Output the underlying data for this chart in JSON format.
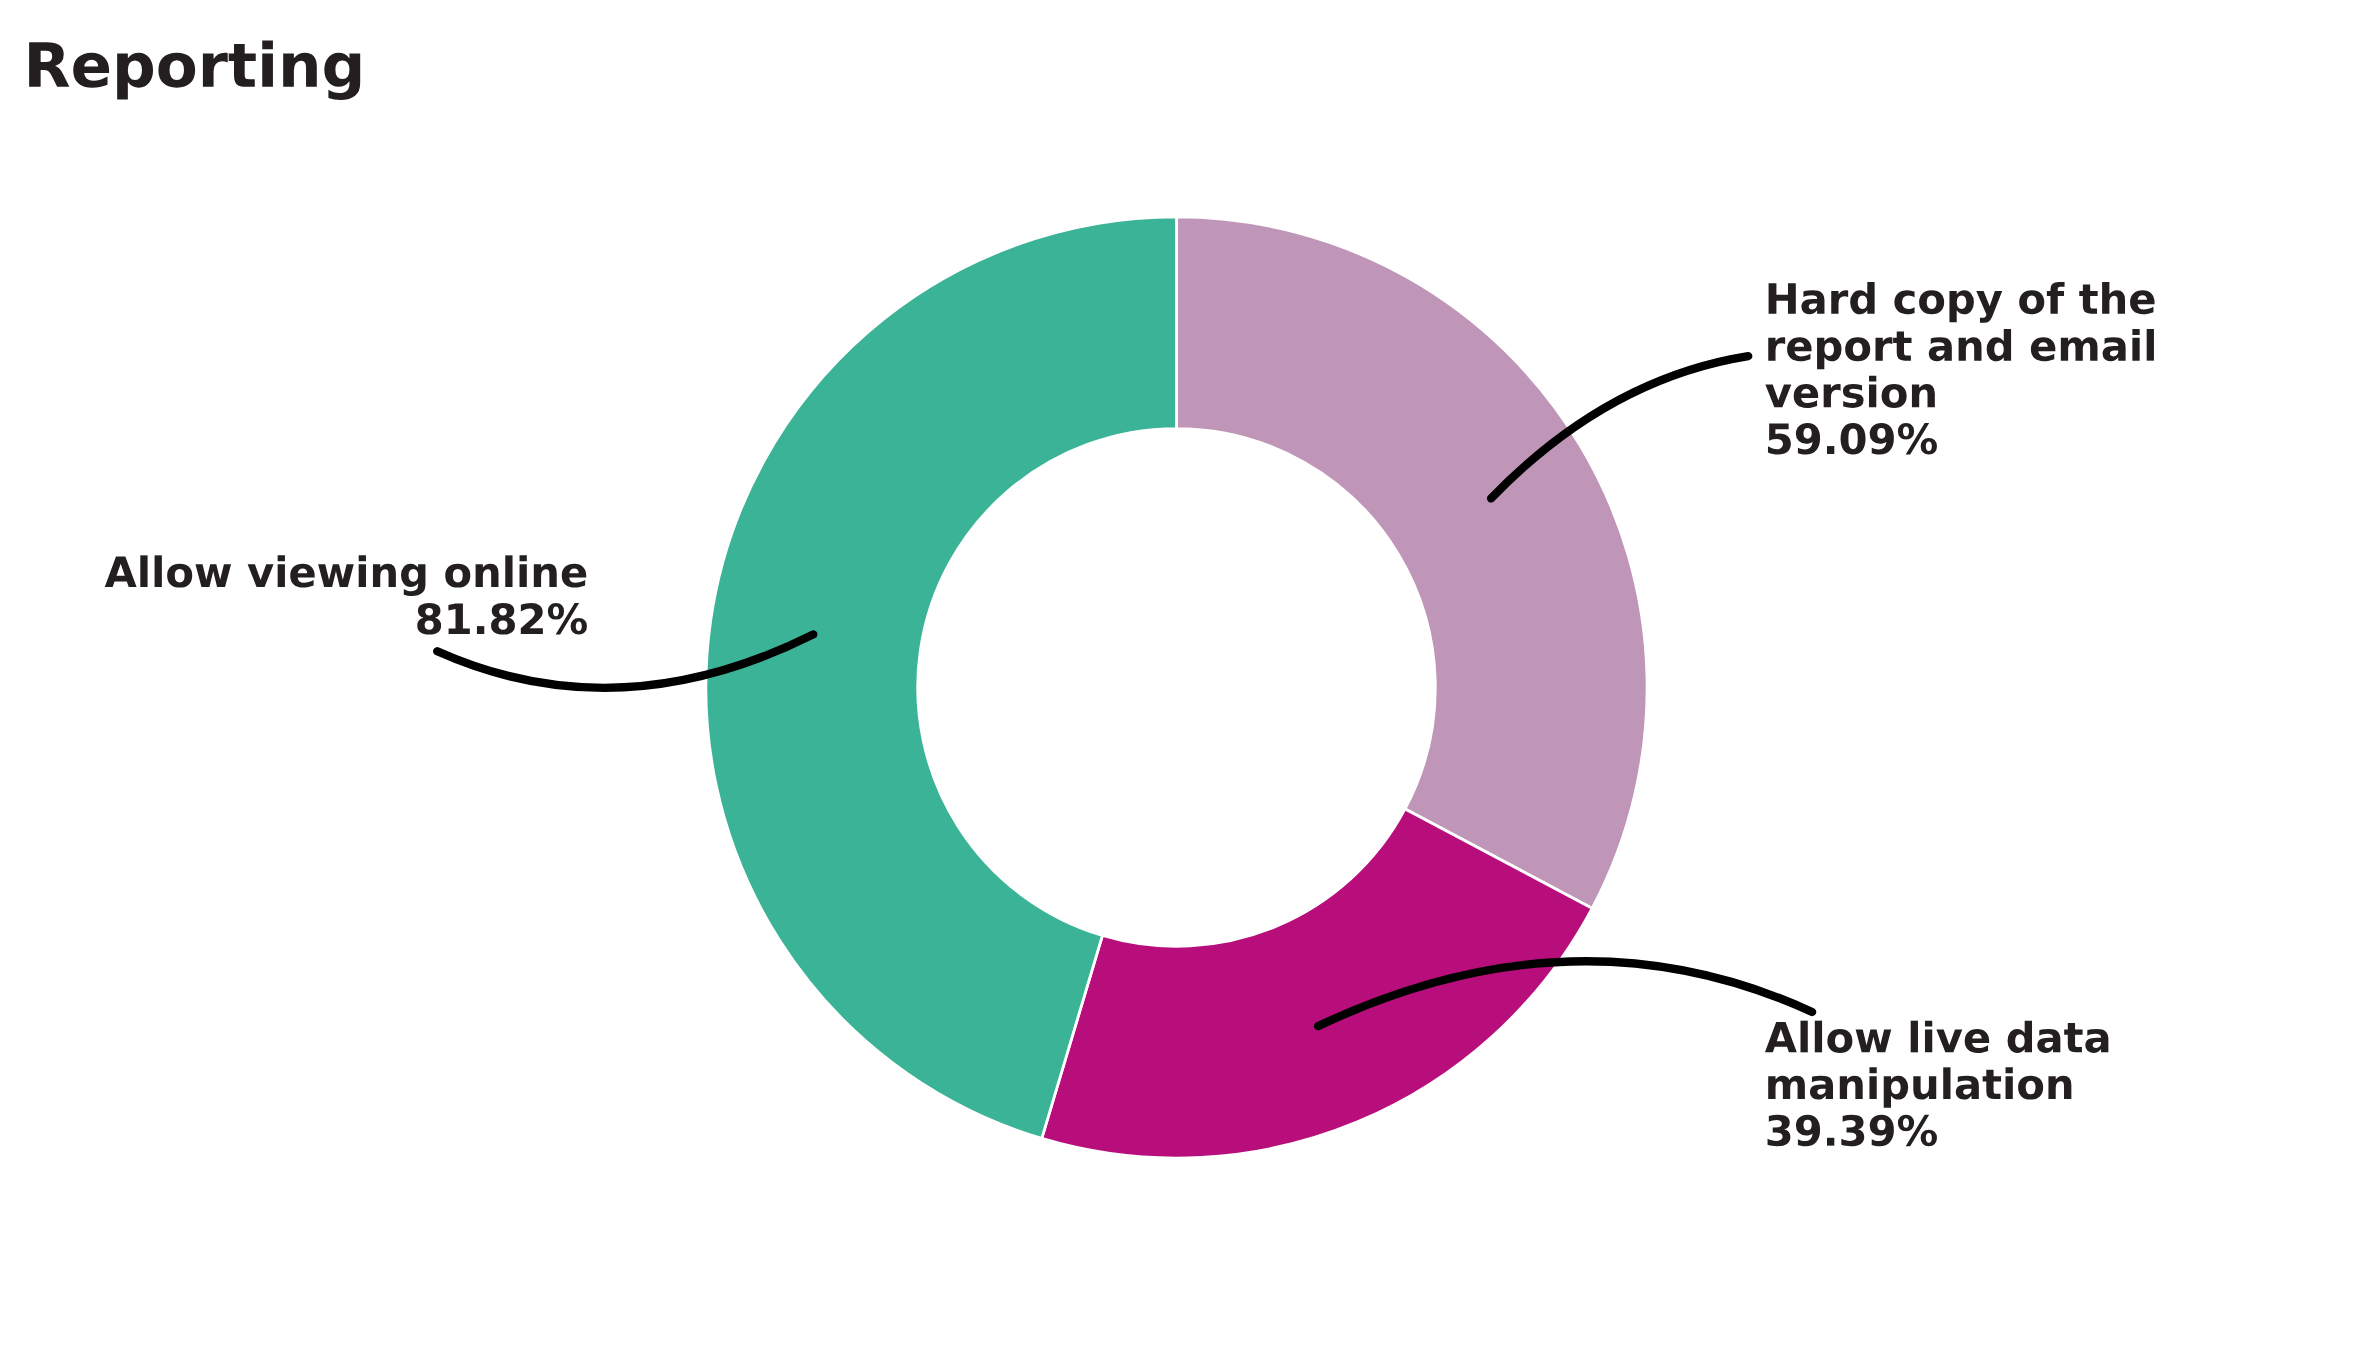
{
  "chart_data": {
    "type": "donut",
    "title": "Reporting",
    "categories": [
      "Hard copy of the report and email version",
      "Allow live data manipulation",
      "Allow viewing online"
    ],
    "values": [
      59.09,
      39.39,
      81.82
    ],
    "value_labels": [
      "59.09%",
      "39.39%",
      "81.82%"
    ],
    "colors": [
      "#bf95b8",
      "#b80e7b",
      "#3bb396"
    ],
    "legend": false
  }
}
